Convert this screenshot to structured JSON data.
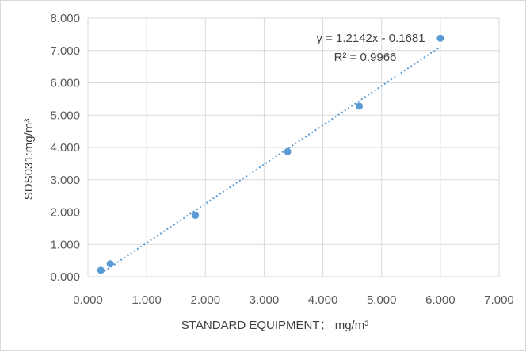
{
  "chart_data": {
    "type": "scatter",
    "title": "",
    "xlabel": "STANDARD EQUIPMENT： mg/m³",
    "ylabel": "SDS031:mg/m³",
    "xlim": [
      0,
      7
    ],
    "ylim": [
      0,
      8
    ],
    "x_ticks": [
      "0.000",
      "1.000",
      "2.000",
      "3.000",
      "4.000",
      "5.000",
      "6.000",
      "7.000"
    ],
    "y_ticks": [
      "0.000",
      "1.000",
      "2.000",
      "3.000",
      "4.000",
      "5.000",
      "6.000",
      "7.000",
      "8.000"
    ],
    "grid": true,
    "legend": "none",
    "series": [
      {
        "x": [
          0.22,
          0.38,
          1.83,
          3.4,
          4.62,
          6.0
        ],
        "y": [
          0.2,
          0.4,
          1.9,
          3.87,
          5.28,
          7.38
        ],
        "color": "#5b9bd5"
      }
    ],
    "trendline": {
      "type": "linear",
      "slope": 1.2142,
      "intercept": -0.1681,
      "x_range": [
        0.22,
        6.0
      ],
      "style": "dotted",
      "color": "#5b9bd5"
    },
    "annotations": [
      "y = 1.2142x - 0.1681",
      "R² = 0.9966"
    ]
  }
}
